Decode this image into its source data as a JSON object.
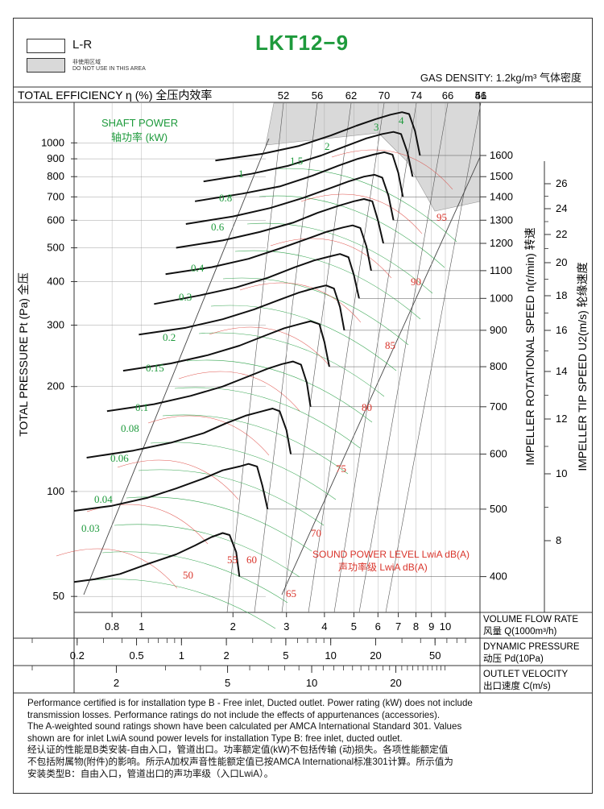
{
  "header": {
    "model": "LKT12−9",
    "legend_lr": "L-R",
    "legend_dnu_cn": "非使用区域",
    "legend_dnu_en": "DO NOT USE IN THIS AREA",
    "gas_density": "GAS DENSITY: 1.2kg/m³ 气体密度"
  },
  "chart_data": {
    "type": "line",
    "title": "LKT12−9",
    "efficiency_label": "TOTAL EFFICIENCY η (%) 全压内效率",
    "efficiency_ticks": [
      "52",
      "56",
      "62",
      "70",
      "74",
      "66",
      "56",
      "41"
    ],
    "ylabel": "TOTAL PRESSURE Pt (Pa) 全压",
    "y_scale": "log",
    "ylim": [
      45,
      1300
    ],
    "y_ticks": [
      50,
      100,
      200,
      300,
      400,
      500,
      600,
      700,
      800,
      900,
      1000
    ],
    "xlim": [
      0.6,
      13
    ],
    "x_scale": "log",
    "flow_label_en": "VOLUME FLOW RATE",
    "flow_label_cn": "风量  Q(1000m³/h)",
    "flow_ticks": [
      {
        "v": 0.8,
        "t": "0.8"
      },
      {
        "v": 1,
        "t": "1"
      },
      {
        "v": 2,
        "t": "2"
      },
      {
        "v": 3,
        "t": "3"
      },
      {
        "v": 4,
        "t": "4"
      },
      {
        "v": 5,
        "t": "5"
      },
      {
        "v": 6,
        "t": "6"
      },
      {
        "v": 7,
        "t": "7"
      },
      {
        "v": 8,
        "t": "8"
      },
      {
        "v": 9,
        "t": "9"
      },
      {
        "v": 10,
        "t": "10"
      }
    ],
    "dp_label_en": "DYNAMIC PRESSURE",
    "dp_label_cn": "动压  Pd(10Pa)",
    "dp_ticks": [
      {
        "v": 0.2,
        "t": "0.2"
      },
      {
        "v": 0.5,
        "t": "0.5"
      },
      {
        "v": 1,
        "t": "1"
      },
      {
        "v": 2,
        "t": "2"
      },
      {
        "v": 5,
        "t": "5"
      },
      {
        "v": 10,
        "t": "10"
      },
      {
        "v": 20,
        "t": "20"
      },
      {
        "v": 50,
        "t": "50"
      }
    ],
    "ov_label_en": "OUTLET VELOCITY",
    "ov_label_cn": "出口速度  C(m/s)",
    "ov_ticks": [
      {
        "v": 2,
        "t": "2"
      },
      {
        "v": 5,
        "t": "5"
      },
      {
        "v": 10,
        "t": "10"
      },
      {
        "v": 20,
        "t": "20"
      }
    ],
    "speed_label": "IMPELLER ROTATIONAL SPEED n(r/min) 转速",
    "tip_label": "IMPELLER TIP SPEED U2(m/s) 轮缘速度",
    "tip_ticks": [
      "26",
      "24",
      "22",
      "20",
      "18",
      "16",
      "14",
      "12",
      "10",
      "8"
    ],
    "shaft_power_label_en": "SHAFT POWER",
    "shaft_power_label_cn": "轴功率 (kW)",
    "shaft_power_values": [
      "4",
      "3",
      "2",
      "1.5",
      "1",
      "0.8",
      "0.6",
      "0.4",
      "0.3",
      "0.2",
      "0.15",
      "0.1",
      "0.08",
      "0.06",
      "0.04",
      "0.03"
    ],
    "sound_label_en": "SOUND POWER LEVEL LwiA dB(A)",
    "sound_label_cn": "声功率级 LwiA dB(A)",
    "sound_values": [
      "95",
      "90",
      "85",
      "80",
      "75",
      "70",
      "65",
      "60",
      "55",
      "50"
    ],
    "series": [
      {
        "name": "1600",
        "x": [
          1.75,
          2.5,
          3.3,
          4.2,
          5.1,
          5.9,
          6.6,
          7.2,
          7.6,
          7.95,
          8.25
        ],
        "y": [
          890,
          930,
          980,
          1050,
          1120,
          1170,
          1205,
          1225,
          1210,
          1080,
          920
        ]
      },
      {
        "name": "1500",
        "x": [
          1.6,
          2.3,
          3.05,
          3.9,
          4.8,
          5.5,
          6.2,
          6.75,
          7.15,
          7.5,
          7.8
        ],
        "y": [
          775,
          815,
          860,
          920,
          985,
          1030,
          1060,
          1075,
          1060,
          940,
          800
        ]
      },
      {
        "name": "1400",
        "x": [
          1.5,
          2.15,
          2.85,
          3.65,
          4.45,
          5.15,
          5.8,
          6.3,
          6.7,
          7.0,
          7.25
        ],
        "y": [
          680,
          715,
          750,
          805,
          860,
          900,
          925,
          940,
          925,
          820,
          700
        ]
      },
      {
        "name": "1300",
        "x": [
          1.4,
          2.0,
          2.65,
          3.4,
          4.15,
          4.8,
          5.4,
          5.85,
          6.2,
          6.5,
          6.75
        ],
        "y": [
          585,
          615,
          650,
          695,
          740,
          775,
          800,
          810,
          795,
          705,
          600
        ]
      },
      {
        "name": "1200",
        "x": [
          1.3,
          1.85,
          2.45,
          3.15,
          3.8,
          4.45,
          5.0,
          5.4,
          5.75,
          6.0,
          6.25
        ],
        "y": [
          500,
          525,
          555,
          590,
          630,
          660,
          680,
          690,
          680,
          600,
          515
        ]
      },
      {
        "name": "1100",
        "x": [
          1.2,
          1.7,
          2.25,
          2.9,
          3.5,
          4.05,
          4.6,
          4.95,
          5.25,
          5.5,
          5.7
        ],
        "y": [
          420,
          440,
          465,
          500,
          530,
          555,
          572,
          580,
          570,
          505,
          430
        ]
      },
      {
        "name": "1000",
        "x": [
          1.1,
          1.55,
          2.05,
          2.6,
          3.2,
          3.7,
          4.15,
          4.5,
          4.8,
          5.0,
          5.2
        ],
        "y": [
          345,
          365,
          385,
          410,
          440,
          460,
          472,
          480,
          470,
          418,
          358
        ]
      },
      {
        "name": "900",
        "x": [
          0.98,
          1.4,
          1.85,
          2.35,
          2.85,
          3.3,
          3.75,
          4.05,
          4.3,
          4.5,
          4.65
        ],
        "y": [
          282,
          295,
          312,
          333,
          355,
          372,
          384,
          390,
          382,
          338,
          290
        ]
      },
      {
        "name": "800",
        "x": [
          0.87,
          1.25,
          1.65,
          2.1,
          2.55,
          2.95,
          3.35,
          3.6,
          3.85,
          4.0,
          4.15
        ],
        "y": [
          222,
          233,
          246,
          262,
          280,
          294,
          303,
          308,
          302,
          268,
          228
        ]
      },
      {
        "name": "700",
        "x": [
          0.77,
          1.1,
          1.45,
          1.85,
          2.25,
          2.6,
          2.9,
          3.15,
          3.35,
          3.5,
          3.6
        ],
        "y": [
          170,
          178,
          188,
          200,
          214,
          225,
          232,
          236,
          231,
          205,
          175
        ]
      },
      {
        "name": "600",
        "x": [
          0.66,
          0.94,
          1.25,
          1.6,
          1.9,
          2.2,
          2.5,
          2.7,
          2.85,
          3.0,
          3.1
        ],
        "y": [
          125,
          131,
          138,
          147,
          157,
          165,
          170,
          173,
          170,
          150,
          128
        ]
      },
      {
        "name": "500",
        "x": [
          0.6,
          0.8,
          1.05,
          1.3,
          1.6,
          1.85,
          2.1,
          2.25,
          2.4,
          2.5,
          2.6
        ],
        "y": [
          88,
          91,
          96,
          102,
          109,
          115,
          118,
          120,
          118,
          104,
          89
        ]
      },
      {
        "name": "400",
        "x": [
          0.6,
          0.7,
          0.85,
          1.05,
          1.3,
          1.5,
          1.7,
          1.85,
          1.95,
          2.05,
          2.1
        ],
        "y": [
          55,
          56,
          58,
          62,
          66,
          70,
          74,
          76,
          75,
          67,
          57
        ]
      }
    ]
  },
  "notes": {
    "line1": "Performance certified is for installation type B - Free inlet, Ducted outlet. Power rating (kW) does not include",
    "line2": "transmission losses. Performance ratings do not include the effects of appurtenances (accessories).",
    "line3": "The A-weighted sound ratings shown have been calculated per AMCA International Standard 301. Values",
    "line4": "shown are for inlet LwiA sound power levels for installation Type B: free inlet, ducted outlet.",
    "line5": "经认证的性能是B类安装-自由入口，管道出口。功率额定值(kW)不包括传输 (动)损失。各项性能额定值",
    "line6": "不包括附属物(附件)的影响。所示A加权声音性能额定值已按AMCA International标准301计算。所示值为",
    "line7": "安装类型B：自由入口，管道出口的声功率级（入口LwiA）。"
  },
  "colors": {
    "title": "#1e9a3c",
    "green": "#1e9a3c",
    "red": "#d9342b",
    "curve": "#111111",
    "shade": "#d9d9d9"
  }
}
